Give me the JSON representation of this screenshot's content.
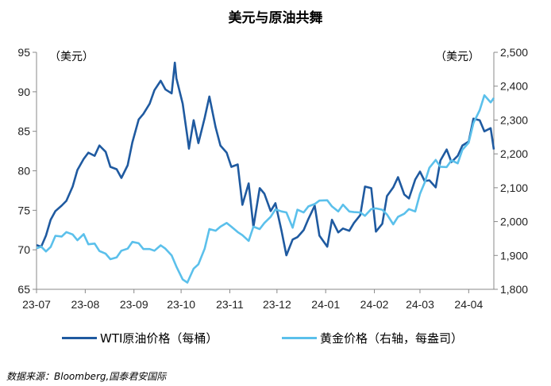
{
  "title": "美元与原油共舞",
  "legend": {
    "wti_label": "WTI原油价格（每桶）",
    "gold_label": "黄金价格（右轴，每盎司）"
  },
  "source": "数据来源：Bloomberg,国泰君安国际",
  "chart_data": {
    "type": "line",
    "x_tick_labels": [
      "23-07",
      "23-08",
      "23-09",
      "23-10",
      "23-11",
      "23-12",
      "24-01",
      "24-02",
      "24-03",
      "24-04"
    ],
    "left_axis": {
      "unit": "（美元）",
      "range": [
        65,
        95
      ],
      "ticks": [
        "65",
        "70",
        "75",
        "80",
        "85",
        "90",
        "95"
      ]
    },
    "right_axis": {
      "unit": "（美元）",
      "range": [
        1800,
        2500
      ],
      "ticks": [
        "1,800",
        "1,900",
        "2,000",
        "2,100",
        "2,200",
        "2,300",
        "2,400",
        "2,500"
      ]
    },
    "x_range": [
      "2023-07-01",
      "2024-04-17"
    ],
    "colors": {
      "wti": "#1f5aa0",
      "gold": "#5bc0eb",
      "axis": "#888888"
    },
    "series": [
      {
        "name": "WTI原油价格（每桶）",
        "axis": "left",
        "x": [
          "2023-07-01",
          "2023-07-04",
          "2023-07-07",
          "2023-07-10",
          "2023-07-13",
          "2023-07-17",
          "2023-07-20",
          "2023-07-24",
          "2023-07-27",
          "2023-07-31",
          "2023-08-03",
          "2023-08-07",
          "2023-08-10",
          "2023-08-14",
          "2023-08-17",
          "2023-08-21",
          "2023-08-24",
          "2023-08-28",
          "2023-08-31",
          "2023-09-04",
          "2023-09-07",
          "2023-09-11",
          "2023-09-14",
          "2023-09-18",
          "2023-09-21",
          "2023-09-25",
          "2023-09-27",
          "2023-09-28",
          "2023-10-02",
          "2023-10-05",
          "2023-10-06",
          "2023-10-09",
          "2023-10-12",
          "2023-10-16",
          "2023-10-19",
          "2023-10-23",
          "2023-10-26",
          "2023-10-30",
          "2023-11-02",
          "2023-11-06",
          "2023-11-09",
          "2023-11-13",
          "2023-11-16",
          "2023-11-20",
          "2023-11-23",
          "2023-11-27",
          "2023-11-30",
          "2023-12-04",
          "2023-12-07",
          "2023-12-11",
          "2023-12-14",
          "2023-12-18",
          "2023-12-21",
          "2023-12-25",
          "2023-12-28",
          "2024-01-02",
          "2024-01-05",
          "2024-01-09",
          "2024-01-12",
          "2024-01-16",
          "2024-01-19",
          "2024-01-23",
          "2024-01-26",
          "2024-01-30",
          "2024-02-02",
          "2024-02-06",
          "2024-02-09",
          "2024-02-13",
          "2024-02-16",
          "2024-02-20",
          "2024-02-23",
          "2024-02-27",
          "2024-03-01",
          "2024-03-04",
          "2024-03-07",
          "2024-03-11",
          "2024-03-14",
          "2024-03-18",
          "2024-03-21",
          "2024-03-25",
          "2024-03-28",
          "2024-04-01",
          "2024-04-04",
          "2024-04-08",
          "2024-04-11",
          "2024-04-15",
          "2024-04-17"
        ],
        "values": [
          70.6,
          70.4,
          71.8,
          73.8,
          74.9,
          75.6,
          76.2,
          78.0,
          80.1,
          81.5,
          82.3,
          81.9,
          83.2,
          82.4,
          80.5,
          80.2,
          79.1,
          80.7,
          83.6,
          86.5,
          87.2,
          88.5,
          90.2,
          91.4,
          90.3,
          89.8,
          93.7,
          91.7,
          88.5,
          84.3,
          82.8,
          86.4,
          83.5,
          86.7,
          89.4,
          85.5,
          83.2,
          82.3,
          80.5,
          80.8,
          75.7,
          78.4,
          72.9,
          77.8,
          77.1,
          74.9,
          75.9,
          72.3,
          69.3,
          71.3,
          71.6,
          72.5,
          73.9,
          75.6,
          71.8,
          70.4,
          73.8,
          72.2,
          72.7,
          72.4,
          73.4,
          74.4,
          78.0,
          77.8,
          72.3,
          73.3,
          76.8,
          77.9,
          79.2,
          77.0,
          76.5,
          78.9,
          79.9,
          78.7,
          78.8,
          77.9,
          81.3,
          82.7,
          81.1,
          81.9,
          83.2,
          83.7,
          86.6,
          86.4,
          85.0,
          85.4,
          82.7
        ]
      },
      {
        "name": "黄金价格（右轴，每盎司）",
        "axis": "right",
        "x": [
          "2023-07-01",
          "2023-07-04",
          "2023-07-07",
          "2023-07-10",
          "2023-07-13",
          "2023-07-17",
          "2023-07-20",
          "2023-07-24",
          "2023-07-27",
          "2023-07-31",
          "2023-08-03",
          "2023-08-07",
          "2023-08-10",
          "2023-08-14",
          "2023-08-17",
          "2023-08-21",
          "2023-08-24",
          "2023-08-28",
          "2023-08-31",
          "2023-09-04",
          "2023-09-07",
          "2023-09-11",
          "2023-09-14",
          "2023-09-18",
          "2023-09-21",
          "2023-09-25",
          "2023-09-28",
          "2023-10-02",
          "2023-10-05",
          "2023-10-09",
          "2023-10-12",
          "2023-10-16",
          "2023-10-19",
          "2023-10-23",
          "2023-10-26",
          "2023-10-30",
          "2023-11-02",
          "2023-11-06",
          "2023-11-09",
          "2023-11-13",
          "2023-11-16",
          "2023-11-20",
          "2023-11-23",
          "2023-11-27",
          "2023-11-30",
          "2023-12-04",
          "2023-12-07",
          "2023-12-11",
          "2023-12-14",
          "2023-12-18",
          "2023-12-21",
          "2023-12-25",
          "2023-12-28",
          "2024-01-02",
          "2024-01-05",
          "2024-01-09",
          "2024-01-12",
          "2024-01-16",
          "2024-01-19",
          "2024-01-23",
          "2024-01-26",
          "2024-01-30",
          "2024-02-02",
          "2024-02-06",
          "2024-02-09",
          "2024-02-13",
          "2024-02-16",
          "2024-02-20",
          "2024-02-23",
          "2024-02-27",
          "2024-03-01",
          "2024-03-04",
          "2024-03-07",
          "2024-03-11",
          "2024-03-14",
          "2024-03-18",
          "2024-03-21",
          "2024-03-25",
          "2024-03-28",
          "2024-04-01",
          "2024-04-04",
          "2024-04-08",
          "2024-04-11",
          "2024-04-15",
          "2024-04-17"
        ],
        "values": [
          1921,
          1926,
          1912,
          1925,
          1958,
          1956,
          1969,
          1962,
          1945,
          1963,
          1933,
          1935,
          1913,
          1905,
          1889,
          1894,
          1914,
          1920,
          1940,
          1936,
          1919,
          1919,
          1914,
          1930,
          1920,
          1900,
          1867,
          1829,
          1820,
          1861,
          1874,
          1920,
          1978,
          1973,
          1985,
          1996,
          1985,
          1969,
          1960,
          1943,
          1985,
          1978,
          1996,
          2014,
          2036,
          2030,
          2027,
          1982,
          2035,
          2027,
          2045,
          2052,
          2062,
          2063,
          2045,
          2030,
          2050,
          2030,
          2028,
          2027,
          2017,
          2037,
          2039,
          2035,
          2021,
          1992,
          2014,
          2023,
          2037,
          2030,
          2082,
          2115,
          2159,
          2182,
          2162,
          2161,
          2181,
          2172,
          2212,
          2233,
          2291,
          2329,
          2373,
          2352,
          2365
        ]
      }
    ]
  }
}
